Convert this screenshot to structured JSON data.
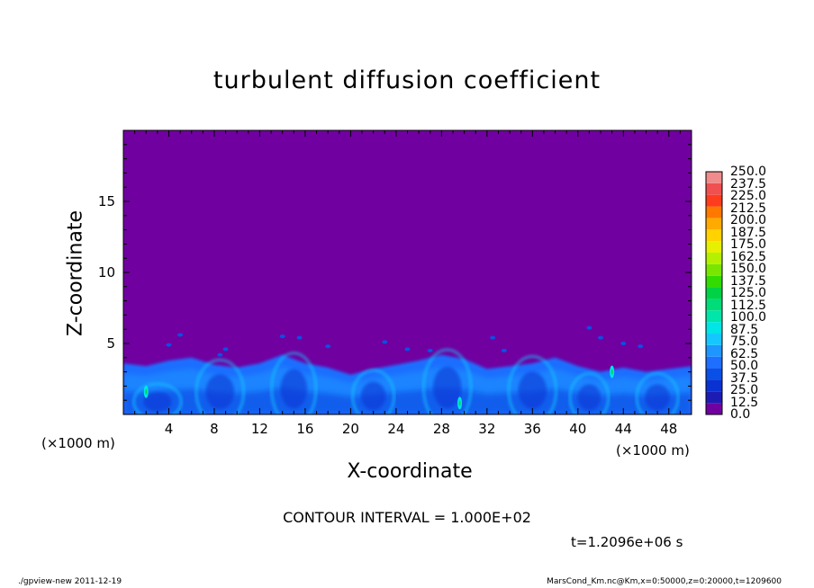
{
  "chart_data": {
    "type": "heatmap",
    "title": "turbulent diffusion coefficient",
    "xlabel": "X-coordinate",
    "ylabel": "Z-coordinate",
    "x_unit": "(×1000 m)",
    "y_unit": "(×1000 m)",
    "xlim": [
      0,
      50
    ],
    "ylim": [
      0,
      20
    ],
    "x_ticks": [
      "4",
      "8",
      "12",
      "16",
      "20",
      "24",
      "28",
      "32",
      "36",
      "40",
      "44",
      "48"
    ],
    "y_ticks": [
      "5",
      "10",
      "15"
    ],
    "colorbar": {
      "levels": [
        "0.0",
        "12.5",
        "25.0",
        "37.5",
        "50.0",
        "62.5",
        "75.0",
        "87.5",
        "100.0",
        "112.5",
        "125.0",
        "137.5",
        "150.0",
        "162.5",
        "175.0",
        "187.5",
        "200.0",
        "212.5",
        "225.0",
        "237.5",
        "250.0"
      ],
      "colors": [
        "#7000a0",
        "#1c1cb4",
        "#0a32d2",
        "#0a50e6",
        "#1e6eff",
        "#1e96ff",
        "#14c8ff",
        "#00e6e6",
        "#00e6aa",
        "#00dc78",
        "#00d246",
        "#32dc00",
        "#78e600",
        "#b4f000",
        "#e6f000",
        "#ffd200",
        "#ffaa00",
        "#ff7800",
        "#ff3c1e",
        "#f05050",
        "#f08c8c"
      ]
    },
    "field_description_points": {
      "layer_top_km": [
        [
          0,
          3.6
        ],
        [
          2,
          3.4
        ],
        [
          4,
          3.8
        ],
        [
          6,
          4.0
        ],
        [
          8,
          3.5
        ],
        [
          10,
          3.3
        ],
        [
          12,
          3.6
        ],
        [
          14,
          4.2
        ],
        [
          16,
          3.6
        ],
        [
          18,
          3.3
        ],
        [
          20,
          2.8
        ],
        [
          22,
          3.2
        ],
        [
          24,
          3.5
        ],
        [
          26,
          3.8
        ],
        [
          28,
          4.2
        ],
        [
          30,
          3.9
        ],
        [
          32,
          3.2
        ],
        [
          34,
          3.4
        ],
        [
          36,
          3.6
        ],
        [
          38,
          4.0
        ],
        [
          40,
          3.4
        ],
        [
          42,
          3.0
        ],
        [
          44,
          3.3
        ],
        [
          46,
          3.0
        ],
        [
          48,
          3.2
        ],
        [
          50,
          3.4
        ]
      ]
    }
  },
  "contour_text": "CONTOUR INTERVAL = 1.000E+02",
  "time_text": "t=1.2096e+06 s",
  "footer_left": "./gpview-new   2011-12-19",
  "footer_right": "MarsCond_Km.nc@Km,x=0:50000,z=0:20000,t=1209600"
}
